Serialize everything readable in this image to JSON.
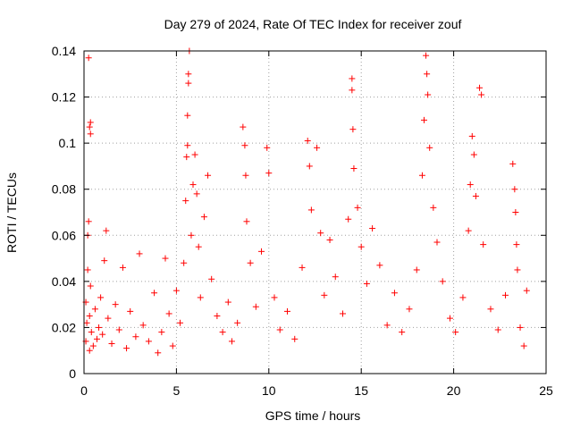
{
  "chart_data": {
    "type": "scatter",
    "title": "Day 279 of 2024, Rate Of TEC Index for receiver zouf",
    "xlabel": "GPS time / hours",
    "ylabel": "ROTI / TECUs",
    "xlim": [
      0,
      25
    ],
    "ylim": [
      0,
      0.14
    ],
    "x_ticks": [
      "0",
      "5",
      "10",
      "15",
      "20",
      "25"
    ],
    "y_ticks": [
      "0",
      "0.02",
      "0.04",
      "0.06",
      "0.08",
      "0.1",
      "0.12",
      "0.14"
    ],
    "x_tick_values": [
      0,
      5,
      10,
      15,
      20,
      25
    ],
    "y_tick_values": [
      0,
      0.02,
      0.04,
      0.06,
      0.08,
      0.1,
      0.12,
      0.14
    ],
    "grid": true,
    "marker": "+",
    "marker_color": "#ff0000",
    "series": [
      {
        "name": "ROTI",
        "points": [
          [
            0.1,
            0.014
          ],
          [
            0.1,
            0.031
          ],
          [
            0.15,
            0.022
          ],
          [
            0.2,
            0.045
          ],
          [
            0.2,
            0.06
          ],
          [
            0.25,
            0.066
          ],
          [
            0.25,
            0.137
          ],
          [
            0.3,
            0.01
          ],
          [
            0.3,
            0.025
          ],
          [
            0.35,
            0.038
          ],
          [
            0.35,
            0.104
          ],
          [
            0.3,
            0.107
          ],
          [
            0.35,
            0.109
          ],
          [
            0.4,
            0.018
          ],
          [
            0.5,
            0.012
          ],
          [
            0.6,
            0.028
          ],
          [
            0.7,
            0.015
          ],
          [
            0.8,
            0.02
          ],
          [
            0.9,
            0.033
          ],
          [
            1.0,
            0.017
          ],
          [
            1.1,
            0.049
          ],
          [
            1.2,
            0.062
          ],
          [
            1.3,
            0.024
          ],
          [
            1.5,
            0.013
          ],
          [
            1.7,
            0.03
          ],
          [
            1.9,
            0.019
          ],
          [
            2.1,
            0.046
          ],
          [
            2.3,
            0.011
          ],
          [
            2.5,
            0.027
          ],
          [
            2.8,
            0.016
          ],
          [
            3.0,
            0.052
          ],
          [
            3.2,
            0.021
          ],
          [
            3.5,
            0.014
          ],
          [
            3.8,
            0.035
          ],
          [
            4.0,
            0.009
          ],
          [
            4.2,
            0.018
          ],
          [
            4.4,
            0.05
          ],
          [
            4.6,
            0.026
          ],
          [
            4.8,
            0.012
          ],
          [
            5.0,
            0.036
          ],
          [
            5.2,
            0.022
          ],
          [
            5.4,
            0.048
          ],
          [
            5.5,
            0.075
          ],
          [
            5.55,
            0.094
          ],
          [
            5.6,
            0.099
          ],
          [
            5.6,
            0.112
          ],
          [
            5.65,
            0.126
          ],
          [
            5.65,
            0.13
          ],
          [
            5.7,
            0.14
          ],
          [
            5.8,
            0.06
          ],
          [
            5.9,
            0.082
          ],
          [
            6.0,
            0.095
          ],
          [
            6.1,
            0.078
          ],
          [
            6.2,
            0.055
          ],
          [
            6.3,
            0.033
          ],
          [
            6.5,
            0.068
          ],
          [
            6.7,
            0.086
          ],
          [
            6.9,
            0.041
          ],
          [
            7.2,
            0.025
          ],
          [
            7.5,
            0.018
          ],
          [
            7.8,
            0.031
          ],
          [
            8.0,
            0.014
          ],
          [
            8.3,
            0.022
          ],
          [
            8.6,
            0.107
          ],
          [
            8.7,
            0.099
          ],
          [
            8.75,
            0.086
          ],
          [
            8.8,
            0.066
          ],
          [
            9.0,
            0.048
          ],
          [
            9.3,
            0.029
          ],
          [
            9.6,
            0.053
          ],
          [
            9.9,
            0.098
          ],
          [
            10.0,
            0.087
          ],
          [
            10.3,
            0.033
          ],
          [
            10.6,
            0.019
          ],
          [
            11.0,
            0.027
          ],
          [
            11.4,
            0.015
          ],
          [
            11.8,
            0.046
          ],
          [
            12.1,
            0.101
          ],
          [
            12.2,
            0.09
          ],
          [
            12.3,
            0.071
          ],
          [
            12.6,
            0.098
          ],
          [
            12.8,
            0.061
          ],
          [
            13.0,
            0.034
          ],
          [
            13.3,
            0.058
          ],
          [
            13.6,
            0.042
          ],
          [
            14.0,
            0.026
          ],
          [
            14.3,
            0.067
          ],
          [
            14.5,
            0.128
          ],
          [
            14.5,
            0.123
          ],
          [
            14.55,
            0.106
          ],
          [
            14.6,
            0.089
          ],
          [
            14.8,
            0.072
          ],
          [
            15.0,
            0.055
          ],
          [
            15.3,
            0.039
          ],
          [
            15.6,
            0.063
          ],
          [
            16.0,
            0.047
          ],
          [
            16.4,
            0.021
          ],
          [
            16.8,
            0.035
          ],
          [
            17.2,
            0.018
          ],
          [
            17.6,
            0.028
          ],
          [
            18.0,
            0.045
          ],
          [
            18.3,
            0.086
          ],
          [
            18.4,
            0.11
          ],
          [
            18.5,
            0.138
          ],
          [
            18.55,
            0.13
          ],
          [
            18.6,
            0.121
          ],
          [
            18.7,
            0.098
          ],
          [
            18.9,
            0.072
          ],
          [
            19.1,
            0.057
          ],
          [
            19.4,
            0.04
          ],
          [
            19.8,
            0.024
          ],
          [
            20.1,
            0.018
          ],
          [
            20.5,
            0.033
          ],
          [
            20.8,
            0.062
          ],
          [
            20.9,
            0.082
          ],
          [
            21.0,
            0.103
          ],
          [
            21.1,
            0.095
          ],
          [
            21.2,
            0.077
          ],
          [
            21.4,
            0.124
          ],
          [
            21.5,
            0.121
          ],
          [
            21.6,
            0.056
          ],
          [
            22.0,
            0.028
          ],
          [
            22.4,
            0.019
          ],
          [
            22.8,
            0.034
          ],
          [
            23.2,
            0.091
          ],
          [
            23.3,
            0.08
          ],
          [
            23.35,
            0.07
          ],
          [
            23.4,
            0.056
          ],
          [
            23.45,
            0.045
          ],
          [
            23.6,
            0.02
          ],
          [
            23.8,
            0.012
          ],
          [
            23.95,
            0.036
          ]
        ]
      }
    ]
  }
}
